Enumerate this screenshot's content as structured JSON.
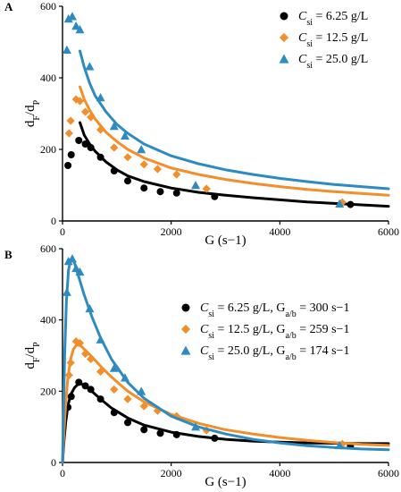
{
  "chart_data": [
    {
      "type": "scatter",
      "panel_label": "A",
      "xlabel": "G (s−1)",
      "ylabel": "dF/dP",
      "ylabel_main": "d",
      "ylabel_sub1": "F",
      "ylabel_mid": "/d",
      "ylabel_sub2": "P",
      "xlim": [
        0,
        6000
      ],
      "ylim": [
        0,
        600
      ],
      "xticks": [
        "0",
        "2000",
        "4000",
        "6000"
      ],
      "yticks": [
        "0",
        "200",
        "400",
        "600"
      ],
      "legend_position": "top-right",
      "series": [
        {
          "label_c": "C",
          "label_sub": "si",
          "label_rest": " = 6.25 g/L",
          "marker": "circle",
          "color": "#000000",
          "points": [
            [
              100,
              155
            ],
            [
              160,
              185
            ],
            [
              300,
              225
            ],
            [
              420,
              215
            ],
            [
              520,
              205
            ],
            [
              700,
              178
            ],
            [
              950,
              140
            ],
            [
              1200,
              112
            ],
            [
              1500,
              92
            ],
            [
              1800,
              82
            ],
            [
              2100,
              78
            ],
            [
              2800,
              68
            ],
            [
              5300,
              46
            ]
          ],
          "fit": [
            [
              320,
              275
            ],
            [
              400,
              240
            ],
            [
              500,
              215
            ],
            [
              600,
              195
            ],
            [
              800,
              165
            ],
            [
              1000,
              143
            ],
            [
              1200,
              126
            ],
            [
              1500,
              110
            ],
            [
              2000,
              92
            ],
            [
              2500,
              80
            ],
            [
              3000,
              72
            ],
            [
              3500,
              65
            ],
            [
              4000,
              59
            ],
            [
              4500,
              53
            ],
            [
              5000,
              49
            ],
            [
              5500,
              45
            ],
            [
              6000,
              41
            ]
          ]
        },
        {
          "label_c": "C",
          "label_sub": "si",
          "label_rest": " = 12.5 g/L",
          "marker": "diamond",
          "color": "#f28e2b",
          "points": [
            [
              120,
              245
            ],
            [
              150,
              280
            ],
            [
              250,
              340
            ],
            [
              320,
              335
            ],
            [
              420,
              305
            ],
            [
              520,
              290
            ],
            [
              700,
              255
            ],
            [
              950,
              205
            ],
            [
              1200,
              178
            ],
            [
              1500,
              158
            ],
            [
              1750,
              145
            ],
            [
              2100,
              130
            ],
            [
              2650,
              90
            ],
            [
              5150,
              52
            ]
          ],
          "fit": [
            [
              320,
              375
            ],
            [
              400,
              340
            ],
            [
              500,
              310
            ],
            [
              600,
              285
            ],
            [
              800,
              248
            ],
            [
              1000,
              222
            ],
            [
              1200,
              200
            ],
            [
              1500,
              176
            ],
            [
              2000,
              148
            ],
            [
              2500,
              130
            ],
            [
              3000,
              116
            ],
            [
              3500,
              105
            ],
            [
              4000,
              96
            ],
            [
              4500,
              88
            ],
            [
              5000,
              82
            ],
            [
              5500,
              77
            ],
            [
              6000,
              72
            ]
          ]
        },
        {
          "label_c": "C",
          "label_sub": "si",
          "label_rest": " = 25.0 g/L",
          "marker": "triangle",
          "color": "#2e8bc0",
          "points": [
            [
              80,
              478
            ],
            [
              110,
              565
            ],
            [
              180,
              572
            ],
            [
              250,
              545
            ],
            [
              320,
              535
            ],
            [
              500,
              432
            ],
            [
              700,
              345
            ],
            [
              950,
              265
            ],
            [
              1150,
              238
            ],
            [
              1450,
              200
            ],
            [
              2450,
              100
            ],
            [
              5100,
              48
            ]
          ],
          "fit": [
            [
              320,
              475
            ],
            [
              400,
              430
            ],
            [
              500,
              385
            ],
            [
              600,
              350
            ],
            [
              800,
              305
            ],
            [
              1000,
              270
            ],
            [
              1200,
              245
            ],
            [
              1500,
              215
            ],
            [
              2000,
              182
            ],
            [
              2500,
              160
            ],
            [
              3000,
              143
            ],
            [
              3500,
              130
            ],
            [
              4000,
              119
            ],
            [
              4500,
              110
            ],
            [
              5000,
              102
            ],
            [
              5500,
              96
            ],
            [
              6000,
              90
            ]
          ]
        }
      ]
    },
    {
      "type": "scatter",
      "panel_label": "B",
      "xlabel": "G (s−1)",
      "ylabel": "dF/dP",
      "ylabel_main": "d",
      "ylabel_sub1": "F",
      "ylabel_mid": "/d",
      "ylabel_sub2": "P",
      "xlim": [
        0,
        6000
      ],
      "ylim": [
        0,
        600
      ],
      "xticks": [
        "0",
        "2000",
        "4000",
        "6000"
      ],
      "yticks": [
        "0",
        "200",
        "400",
        "600"
      ],
      "legend_position": "right",
      "series": [
        {
          "label_c": "C",
          "label_sub": "si",
          "label_rest": " = 6.25 g/L,  ",
          "label_g": "G",
          "label_gsub": "a/b",
          "label_gval": " = 300 s−1",
          "marker": "circle",
          "color": "#000000",
          "points": [
            [
              100,
              155
            ],
            [
              160,
              185
            ],
            [
              300,
              225
            ],
            [
              420,
              215
            ],
            [
              520,
              205
            ],
            [
              700,
              178
            ],
            [
              950,
              140
            ],
            [
              1200,
              112
            ],
            [
              1500,
              92
            ],
            [
              1800,
              82
            ],
            [
              2100,
              78
            ],
            [
              2800,
              68
            ],
            [
              5300,
              46
            ]
          ],
          "fit": [
            [
              0,
              0
            ],
            [
              30,
              65
            ],
            [
              60,
              115
            ],
            [
              100,
              160
            ],
            [
              150,
              190
            ],
            [
              220,
              210
            ],
            [
              300,
              222
            ],
            [
              400,
              218
            ],
            [
              500,
              205
            ],
            [
              700,
              178
            ],
            [
              900,
              153
            ],
            [
              1200,
              125
            ],
            [
              1500,
              105
            ],
            [
              2000,
              85
            ],
            [
              2500,
              73
            ],
            [
              3000,
              65
            ],
            [
              3500,
              60
            ],
            [
              4000,
              57
            ],
            [
              4500,
              55
            ],
            [
              5000,
              54
            ],
            [
              5500,
              53
            ],
            [
              6000,
              53
            ]
          ]
        },
        {
          "label_c": "C",
          "label_sub": "si",
          "label_rest": " = 12.5 g/L,  ",
          "label_g": "G",
          "label_gsub": "a/b",
          "label_gval": " = 259 s−1",
          "marker": "diamond",
          "color": "#f28e2b",
          "points": [
            [
              120,
              245
            ],
            [
              150,
              280
            ],
            [
              250,
              340
            ],
            [
              320,
              335
            ],
            [
              420,
              305
            ],
            [
              520,
              290
            ],
            [
              700,
              255
            ],
            [
              950,
              205
            ],
            [
              1200,
              178
            ],
            [
              1500,
              158
            ],
            [
              1750,
              145
            ],
            [
              2100,
              130
            ],
            [
              2650,
              90
            ],
            [
              5150,
              52
            ]
          ],
          "fit": [
            [
              0,
              0
            ],
            [
              30,
              90
            ],
            [
              60,
              170
            ],
            [
              100,
              240
            ],
            [
              150,
              290
            ],
            [
              200,
              318
            ],
            [
              260,
              330
            ],
            [
              330,
              328
            ],
            [
              420,
              315
            ],
            [
              550,
              295
            ],
            [
              700,
              270
            ],
            [
              900,
              240
            ],
            [
              1200,
              200
            ],
            [
              1500,
              170
            ],
            [
              2000,
              135
            ],
            [
              2500,
              110
            ],
            [
              3000,
              92
            ],
            [
              3500,
              80
            ],
            [
              4000,
              70
            ],
            [
              4500,
              62
            ],
            [
              5000,
              56
            ],
            [
              5500,
              51
            ],
            [
              6000,
              48
            ]
          ]
        },
        {
          "label_c": "C",
          "label_sub": "si",
          "label_rest": " = 25.0 g/L,  ",
          "label_g": "G",
          "label_gsub": "a/b",
          "label_gval": " = 174 s−1",
          "marker": "triangle",
          "color": "#2e8bc0",
          "points": [
            [
              80,
              478
            ],
            [
              110,
              565
            ],
            [
              180,
              572
            ],
            [
              250,
              545
            ],
            [
              320,
              535
            ],
            [
              500,
              432
            ],
            [
              700,
              345
            ],
            [
              950,
              265
            ],
            [
              1150,
              238
            ],
            [
              1450,
              200
            ],
            [
              2450,
              100
            ],
            [
              5100,
              48
            ]
          ],
          "fit": [
            [
              0,
              0
            ],
            [
              20,
              150
            ],
            [
              40,
              300
            ],
            [
              70,
              450
            ],
            [
              110,
              540
            ],
            [
              150,
              568
            ],
            [
              180,
              572
            ],
            [
              220,
              560
            ],
            [
              300,
              520
            ],
            [
              400,
              470
            ],
            [
              550,
              405
            ],
            [
              700,
              350
            ],
            [
              900,
              290
            ],
            [
              1200,
              225
            ],
            [
              1500,
              180
            ],
            [
              2000,
              130
            ],
            [
              2500,
              100
            ],
            [
              3000,
              80
            ],
            [
              3500,
              65
            ],
            [
              4000,
              55
            ],
            [
              4500,
              47
            ],
            [
              5000,
              42
            ],
            [
              5500,
              38
            ],
            [
              6000,
              36
            ]
          ]
        }
      ]
    }
  ]
}
